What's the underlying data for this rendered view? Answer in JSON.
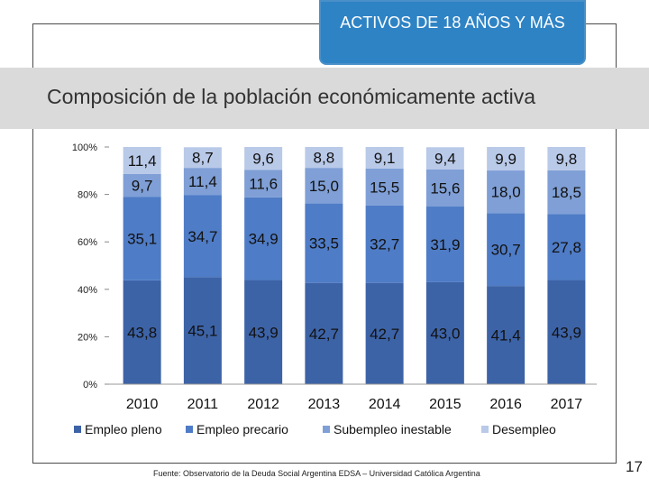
{
  "header": {
    "banner": "ACTIVOS DE 18 AÑOS Y MÁS",
    "title": "Composición de la población económicamente activa"
  },
  "footer": {
    "source": "Fuente: Observatorio de la Deuda Social Argentina EDSA – Universidad Católica Argentina",
    "page_number": "17"
  },
  "chart_data": {
    "type": "bar",
    "stacked": true,
    "categories": [
      "2010",
      "2011",
      "2012",
      "2013",
      "2014",
      "2015",
      "2016",
      "2017"
    ],
    "series": [
      {
        "name": "Empleo pleno",
        "color": "#3d63a7",
        "values": [
          43.8,
          45.1,
          43.9,
          42.7,
          42.7,
          43.0,
          41.4,
          43.9
        ],
        "labels": [
          "43,8",
          "45,1",
          "43,9",
          "42,7",
          "42,7",
          "43,0",
          "41,4",
          "43,9"
        ]
      },
      {
        "name": "Empleo precario",
        "color": "#4f7cc6",
        "values": [
          35.1,
          34.7,
          34.9,
          33.5,
          32.7,
          31.9,
          30.7,
          27.8
        ],
        "labels": [
          "35,1",
          "34,7",
          "34,9",
          "33,5",
          "32,7",
          "31,9",
          "30,7",
          "27,8"
        ]
      },
      {
        "name": "Subempleo inestable",
        "color": "#7f9fd6",
        "values": [
          9.7,
          11.4,
          11.6,
          15.0,
          15.5,
          15.6,
          18.0,
          18.5
        ],
        "labels": [
          "9,7",
          "11,4",
          "11,6",
          "15,0",
          "15,5",
          "15,6",
          "18,0",
          "18,5"
        ]
      },
      {
        "name": "Desempleo",
        "color": "#b9c9e8",
        "values": [
          11.4,
          8.7,
          9.6,
          8.8,
          9.1,
          9.4,
          9.9,
          9.8
        ],
        "labels": [
          "11,4",
          "8,7",
          "9,6",
          "8,8",
          "9,1",
          "9,4",
          "9,9",
          "9,8"
        ]
      }
    ],
    "y_ticks": [
      "0%",
      "20%",
      "40%",
      "60%",
      "80%",
      "100%"
    ],
    "ylim": [
      0,
      100
    ],
    "legend_position": "bottom",
    "title": "",
    "xlabel": "",
    "ylabel": ""
  }
}
